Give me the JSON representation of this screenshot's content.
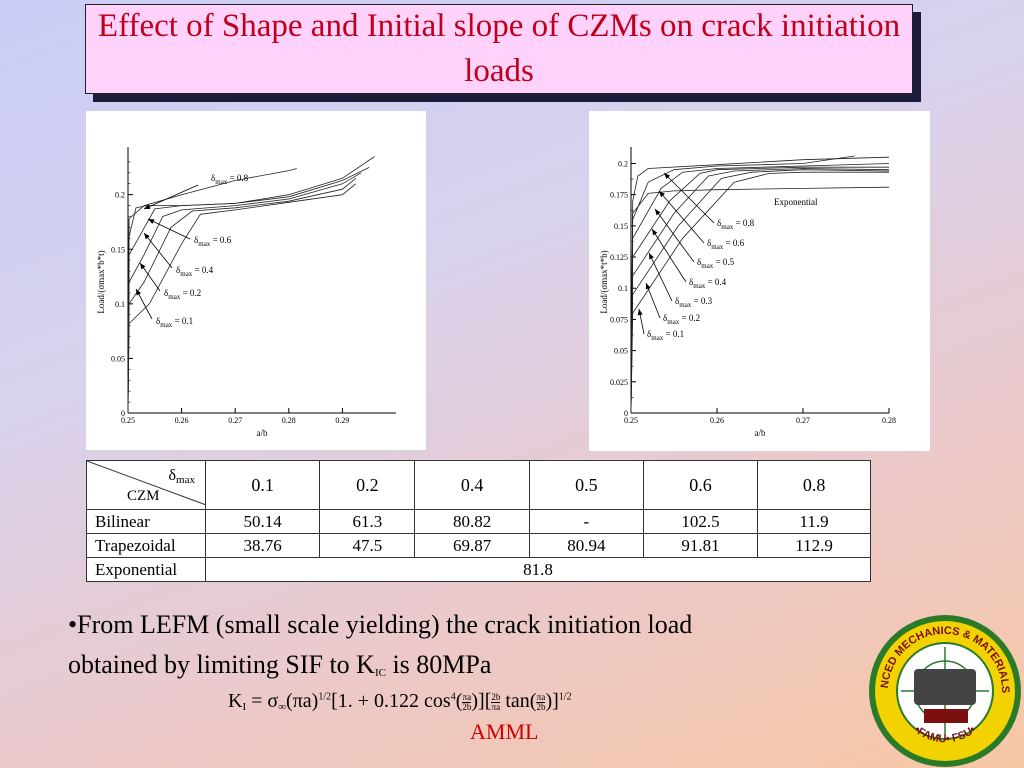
{
  "title": "Effect of Shape and Initial slope of CZMs on crack initiation loads",
  "chart_data": [
    {
      "type": "line",
      "xlabel": "a/b",
      "ylabel": "Load/(σmax*b*t)",
      "xlim": [
        0.25,
        0.3
      ],
      "ylim": [
        0,
        0.24
      ],
      "x_ticks": [
        "0.25",
        "0.26",
        "0.27",
        "0.28",
        "0.29"
      ],
      "y_ticks": [
        "0",
        "0.05",
        "0.1",
        "0.15",
        "0.2"
      ],
      "annotations": [
        {
          "sym": "δ",
          "sub": "max",
          "text": "= 0.8"
        },
        {
          "sym": "δ",
          "sub": "max",
          "text": "= 0.6"
        },
        {
          "sym": "δ",
          "sub": "max",
          "text": "= 0.4"
        },
        {
          "sym": "δ",
          "sub": "max",
          "text": "= 0.2"
        },
        {
          "sym": "δ",
          "sub": "max",
          "text": "= 0.1"
        }
      ],
      "series": [
        {
          "points": [
            [
              0.25,
              0.0
            ],
            [
              0.2502,
              0.178
            ],
            [
              0.253,
              0.19
            ],
            [
              0.26,
              0.2
            ],
            [
              0.27,
              0.213
            ],
            [
              0.28,
              0.222
            ],
            [
              0.2815,
              0.224
            ]
          ]
        },
        {
          "points": [
            [
              0.25,
              0.0
            ],
            [
              0.2502,
              0.161
            ],
            [
              0.2505,
              0.168
            ],
            [
              0.2515,
              0.188
            ],
            [
              0.2535,
              0.19
            ],
            [
              0.26,
              0.19
            ],
            [
              0.27,
              0.192
            ],
            [
              0.28,
              0.2
            ],
            [
              0.29,
              0.215
            ],
            [
              0.296,
              0.235
            ]
          ]
        },
        {
          "points": [
            [
              0.25,
              0.0
            ],
            [
              0.2502,
              0.145
            ],
            [
              0.2525,
              0.165
            ],
            [
              0.255,
              0.187
            ],
            [
              0.26,
              0.19
            ],
            [
              0.27,
              0.192
            ],
            [
              0.28,
              0.198
            ],
            [
              0.29,
              0.213
            ],
            [
              0.295,
              0.225
            ]
          ]
        },
        {
          "points": [
            [
              0.25,
              0.0
            ],
            [
              0.2502,
              0.12
            ],
            [
              0.253,
              0.145
            ],
            [
              0.2565,
              0.18
            ],
            [
              0.26,
              0.186
            ],
            [
              0.27,
              0.19
            ],
            [
              0.28,
              0.196
            ],
            [
              0.29,
              0.21
            ],
            [
              0.2935,
              0.22
            ]
          ]
        },
        {
          "points": [
            [
              0.25,
              0.0
            ],
            [
              0.2502,
              0.1
            ],
            [
              0.253,
              0.12
            ],
            [
              0.258,
              0.17
            ],
            [
              0.262,
              0.185
            ],
            [
              0.27,
              0.188
            ],
            [
              0.28,
              0.194
            ],
            [
              0.29,
              0.205
            ],
            [
              0.2925,
              0.215
            ]
          ]
        },
        {
          "points": [
            [
              0.25,
              0.0
            ],
            [
              0.2502,
              0.082
            ],
            [
              0.254,
              0.1
            ],
            [
              0.26,
              0.155
            ],
            [
              0.2635,
              0.182
            ],
            [
              0.27,
              0.186
            ],
            [
              0.28,
              0.193
            ],
            [
              0.29,
              0.2
            ],
            [
              0.2925,
              0.21
            ]
          ]
        }
      ]
    },
    {
      "type": "line",
      "xlabel": "a/b",
      "ylabel": "Load/(σmax*t*b)",
      "xlim": [
        0.25,
        0.28
      ],
      "ylim": [
        0,
        0.21
      ],
      "x_ticks": [
        "0.25",
        "0.26",
        "0.27",
        "0.28"
      ],
      "y_ticks": [
        "0",
        "0.025",
        "0.05",
        "0.075",
        "0.1",
        "0.125",
        "0.15",
        "0.175",
        "0.2"
      ],
      "annotations": [
        {
          "text": "Exponential"
        },
        {
          "sym": "δ",
          "sub": "max",
          "text": "= 0.8"
        },
        {
          "sym": "δ",
          "sub": "max",
          "text": "= 0.6"
        },
        {
          "sym": "δ",
          "sub": "max",
          "text": "= 0.5"
        },
        {
          "sym": "δ",
          "sub": "max",
          "text": "= 0.4"
        },
        {
          "sym": "δ",
          "sub": "max",
          "text": "= 0.3"
        },
        {
          "sym": "δ",
          "sub": "max",
          "text": "= 0.2"
        },
        {
          "sym": "δ",
          "sub": "max",
          "text": "= 0.1"
        }
      ],
      "series": [
        {
          "name": "Exponential",
          "points": [
            [
              0.25,
              0.0
            ],
            [
              0.2502,
              0.16
            ],
            [
              0.252,
              0.176
            ],
            [
              0.255,
              0.178
            ],
            [
              0.26,
              0.179
            ],
            [
              0.27,
              0.18
            ],
            [
              0.28,
              0.181
            ]
          ]
        },
        {
          "points": [
            [
              0.25,
              0.0
            ],
            [
              0.2502,
              0.17
            ],
            [
              0.2508,
              0.19
            ],
            [
              0.252,
              0.196
            ],
            [
              0.26,
              0.199
            ],
            [
              0.27,
              0.203
            ],
            [
              0.28,
              0.205
            ]
          ]
        },
        {
          "points": [
            [
              0.25,
              0.0
            ],
            [
              0.2502,
              0.155
            ],
            [
              0.252,
              0.185
            ],
            [
              0.255,
              0.195
            ],
            [
              0.26,
              0.198
            ],
            [
              0.27,
              0.2
            ],
            [
              0.276,
              0.206
            ]
          ]
        },
        {
          "points": [
            [
              0.25,
              0.0
            ],
            [
              0.2502,
              0.14
            ],
            [
              0.2535,
              0.18
            ],
            [
              0.256,
              0.193
            ],
            [
              0.26,
              0.196
            ],
            [
              0.27,
              0.198
            ],
            [
              0.28,
              0.2
            ]
          ]
        },
        {
          "points": [
            [
              0.25,
              0.0
            ],
            [
              0.2502,
              0.125
            ],
            [
              0.2545,
              0.17
            ],
            [
              0.258,
              0.192
            ],
            [
              0.26,
              0.195
            ],
            [
              0.27,
              0.197
            ],
            [
              0.28,
              0.197
            ]
          ]
        },
        {
          "points": [
            [
              0.25,
              0.0
            ],
            [
              0.2502,
              0.11
            ],
            [
              0.255,
              0.16
            ],
            [
              0.259,
              0.19
            ],
            [
              0.262,
              0.194
            ],
            [
              0.27,
              0.196
            ],
            [
              0.28,
              0.195
            ]
          ]
        },
        {
          "points": [
            [
              0.25,
              0.0
            ],
            [
              0.2502,
              0.095
            ],
            [
              0.2555,
              0.15
            ],
            [
              0.2605,
              0.188
            ],
            [
              0.264,
              0.193
            ],
            [
              0.27,
              0.195
            ],
            [
              0.28,
              0.194
            ]
          ]
        },
        {
          "points": [
            [
              0.25,
              0.0
            ],
            [
              0.2502,
              0.08
            ],
            [
              0.256,
              0.14
            ],
            [
              0.262,
              0.185
            ],
            [
              0.266,
              0.192
            ],
            [
              0.27,
              0.193
            ],
            [
              0.28,
              0.193
            ]
          ]
        }
      ]
    }
  ],
  "table": {
    "corner_top": "δ",
    "corner_top_sub": "max",
    "corner_bottom": "CZM",
    "columns": [
      "0.1",
      "0.2",
      "0.4",
      "0.5",
      "0.6",
      "0.8"
    ],
    "rows": [
      {
        "label": "Bilinear",
        "values": [
          "50.14",
          "61.3",
          "80.82",
          "-",
          "102.5",
          "11.9"
        ]
      },
      {
        "label": "Trapezoidal",
        "values": [
          "38.76",
          "47.5",
          "69.87",
          "80.94",
          "91.81",
          "112.9"
        ]
      },
      {
        "label": "Exponential",
        "merged": "81.8"
      }
    ]
  },
  "bullet": {
    "line1": "•From LEFM (small scale yielding) the crack initiation load",
    "line2_a": "obtained by limiting SIF  to ",
    "k": "K",
    "k_sub": "IC",
    "line2_b": " is 80MPa"
  },
  "formula": {
    "k": "K",
    "k_sub": "I",
    "eq": " = σ",
    "inf": "∞",
    "pa": "(πa)",
    "half": "1/2",
    "bracket_open": "[1. + 0.122 cos",
    "four": "4",
    "pa_frac_top": "πa",
    "pa_frac_bot": "2b",
    "mid": ")][",
    "b_frac_top": "2b",
    "b_frac_bot": "πa",
    "tan": " tan(",
    "close": ")]",
    "half2": "1/2"
  },
  "footer": "AMML",
  "logo": {
    "ring_top": "ADVANCED MECHANICS & MATERIALS LAB",
    "ring_bottom": "•FAMU• FSU•",
    "colors": {
      "outer": "#2a7a2a",
      "ring": "#f2d200",
      "center": "#ffffff",
      "text": "#7a1010"
    }
  },
  "colors": {
    "title_text": "#c0001a",
    "title_bg": "#ffd2fb",
    "footer": "#d00000"
  }
}
